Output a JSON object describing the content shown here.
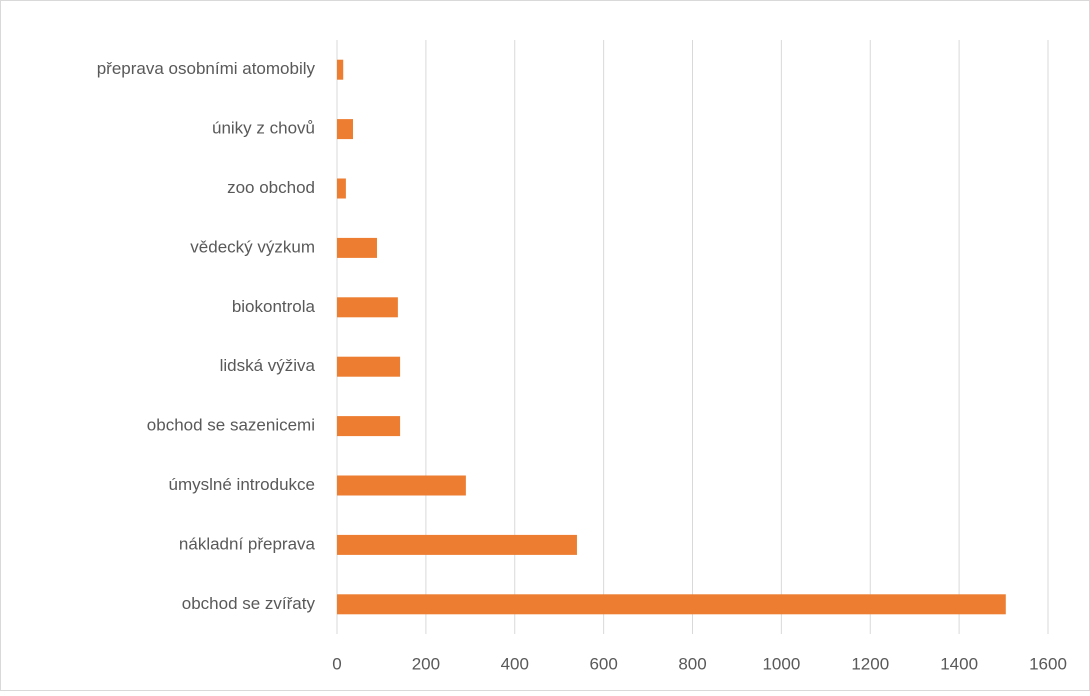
{
  "chart_data": {
    "type": "hbar",
    "categories": [
      "přeprava osobními atomobily",
      "úniky z chovů",
      "zoo obchod",
      "vědecký výzkum",
      "biokontrola",
      "lidská výživa",
      "obchod se sazenicemi",
      "úmyslné introdukce",
      "nákladní přeprava",
      "obchod se zvířaty"
    ],
    "values": [
      14,
      36,
      20,
      90,
      137,
      142,
      142,
      290,
      540,
      1505
    ],
    "color": "#ed7d31",
    "xlim": [
      0,
      1600
    ],
    "xticks": [
      0,
      200,
      400,
      600,
      800,
      1000,
      1200,
      1400,
      1600
    ],
    "grid": true
  }
}
